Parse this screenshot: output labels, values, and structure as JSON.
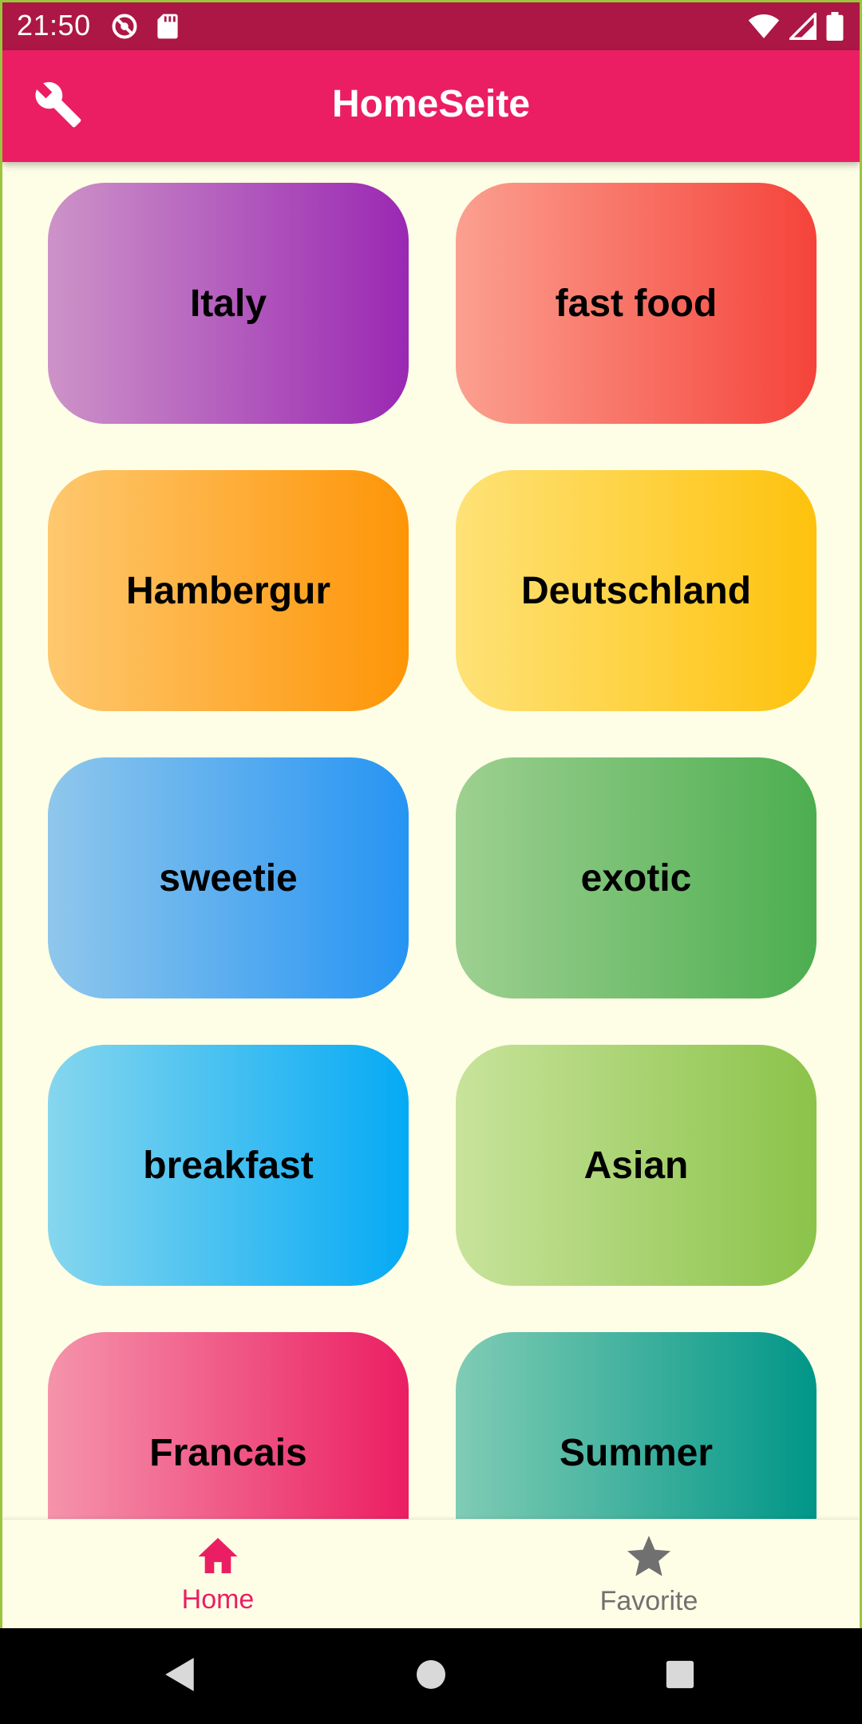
{
  "status_bar": {
    "time": "21:50"
  },
  "app_bar": {
    "title": "HomeSeite",
    "settings_icon": "wrench-icon"
  },
  "categories": [
    {
      "label": "Italy",
      "color_from": "#cd93c8",
      "color_to": "#9a28b3"
    },
    {
      "label": "fast food",
      "color_from": "#fba090",
      "color_to": "#f5433a"
    },
    {
      "label": "Hambergur",
      "color_from": "#fec86e",
      "color_to": "#fe9507"
    },
    {
      "label": "Deutschland",
      "color_from": "#fee277",
      "color_to": "#fec20d"
    },
    {
      "label": "sweetie",
      "color_from": "#8fc7ec",
      "color_to": "#2694f3"
    },
    {
      "label": "exotic",
      "color_from": "#9ed091",
      "color_to": "#4cae50"
    },
    {
      "label": "breakfast",
      "color_from": "#86d6ee",
      "color_to": "#05aaf4"
    },
    {
      "label": "Asian",
      "color_from": "#c8e39b",
      "color_to": "#8bc34a"
    },
    {
      "label": "Francais",
      "color_from": "#f594ab",
      "color_to": "#eb1e63"
    },
    {
      "label": "Summer",
      "color_from": "#80ccb4",
      "color_to": "#009688"
    }
  ],
  "bottom_nav": {
    "items": [
      {
        "label": "Home",
        "icon": "home-icon",
        "active": true
      },
      {
        "label": "Favorite",
        "icon": "star-icon",
        "active": false
      }
    ],
    "active_color": "#eb1e63",
    "inactive_color": "#707070"
  }
}
